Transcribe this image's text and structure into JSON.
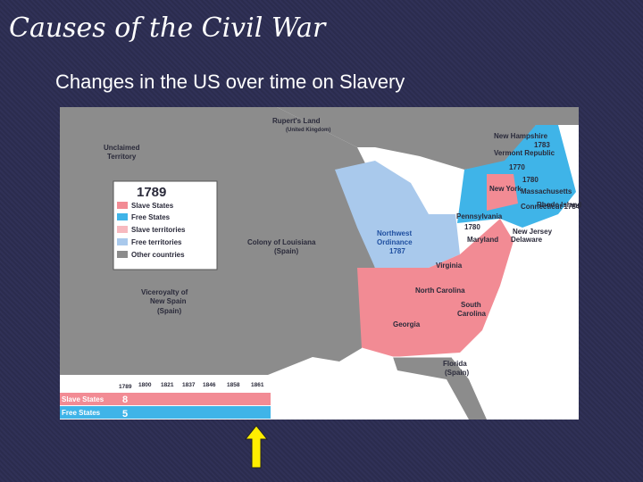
{
  "header": {
    "title": "Causes of the Civil War",
    "subtitle": "Changes in the US over time on Slavery"
  },
  "legend": {
    "title": "1789",
    "items": [
      "Slave States",
      "Free States",
      "Slave territories",
      "Free territories",
      "Other countries"
    ]
  },
  "map": {
    "labels": [
      "Rupert's Land",
      "(United Kingdom)",
      "Unclaimed",
      "Territory",
      "Colony of Louisiana",
      "(Spain)",
      "Viceroyalty of",
      "New Spain",
      "(Spain)",
      "Northwest",
      "Ordinance",
      "1787",
      "New Hampshire",
      "1783",
      "Vermont Republic",
      "1770",
      "1780",
      "New York",
      "Massachusetts",
      "Rhode Island",
      "Connecticut 1784",
      "Pennsylvania",
      "1780",
      "New Jersey",
      "Maryland",
      "Delaware",
      "Virginia",
      "North Carolina",
      "South",
      "Carolina",
      "Georgia",
      "Florida",
      "(Spain)"
    ]
  },
  "timeline": {
    "years": [
      "1789",
      "1800",
      "1821",
      "1837",
      "1846",
      "1858",
      "1861"
    ],
    "rows": [
      {
        "label": "Slave States",
        "count": "8"
      },
      {
        "label": "Free States",
        "count": "5"
      }
    ]
  }
}
